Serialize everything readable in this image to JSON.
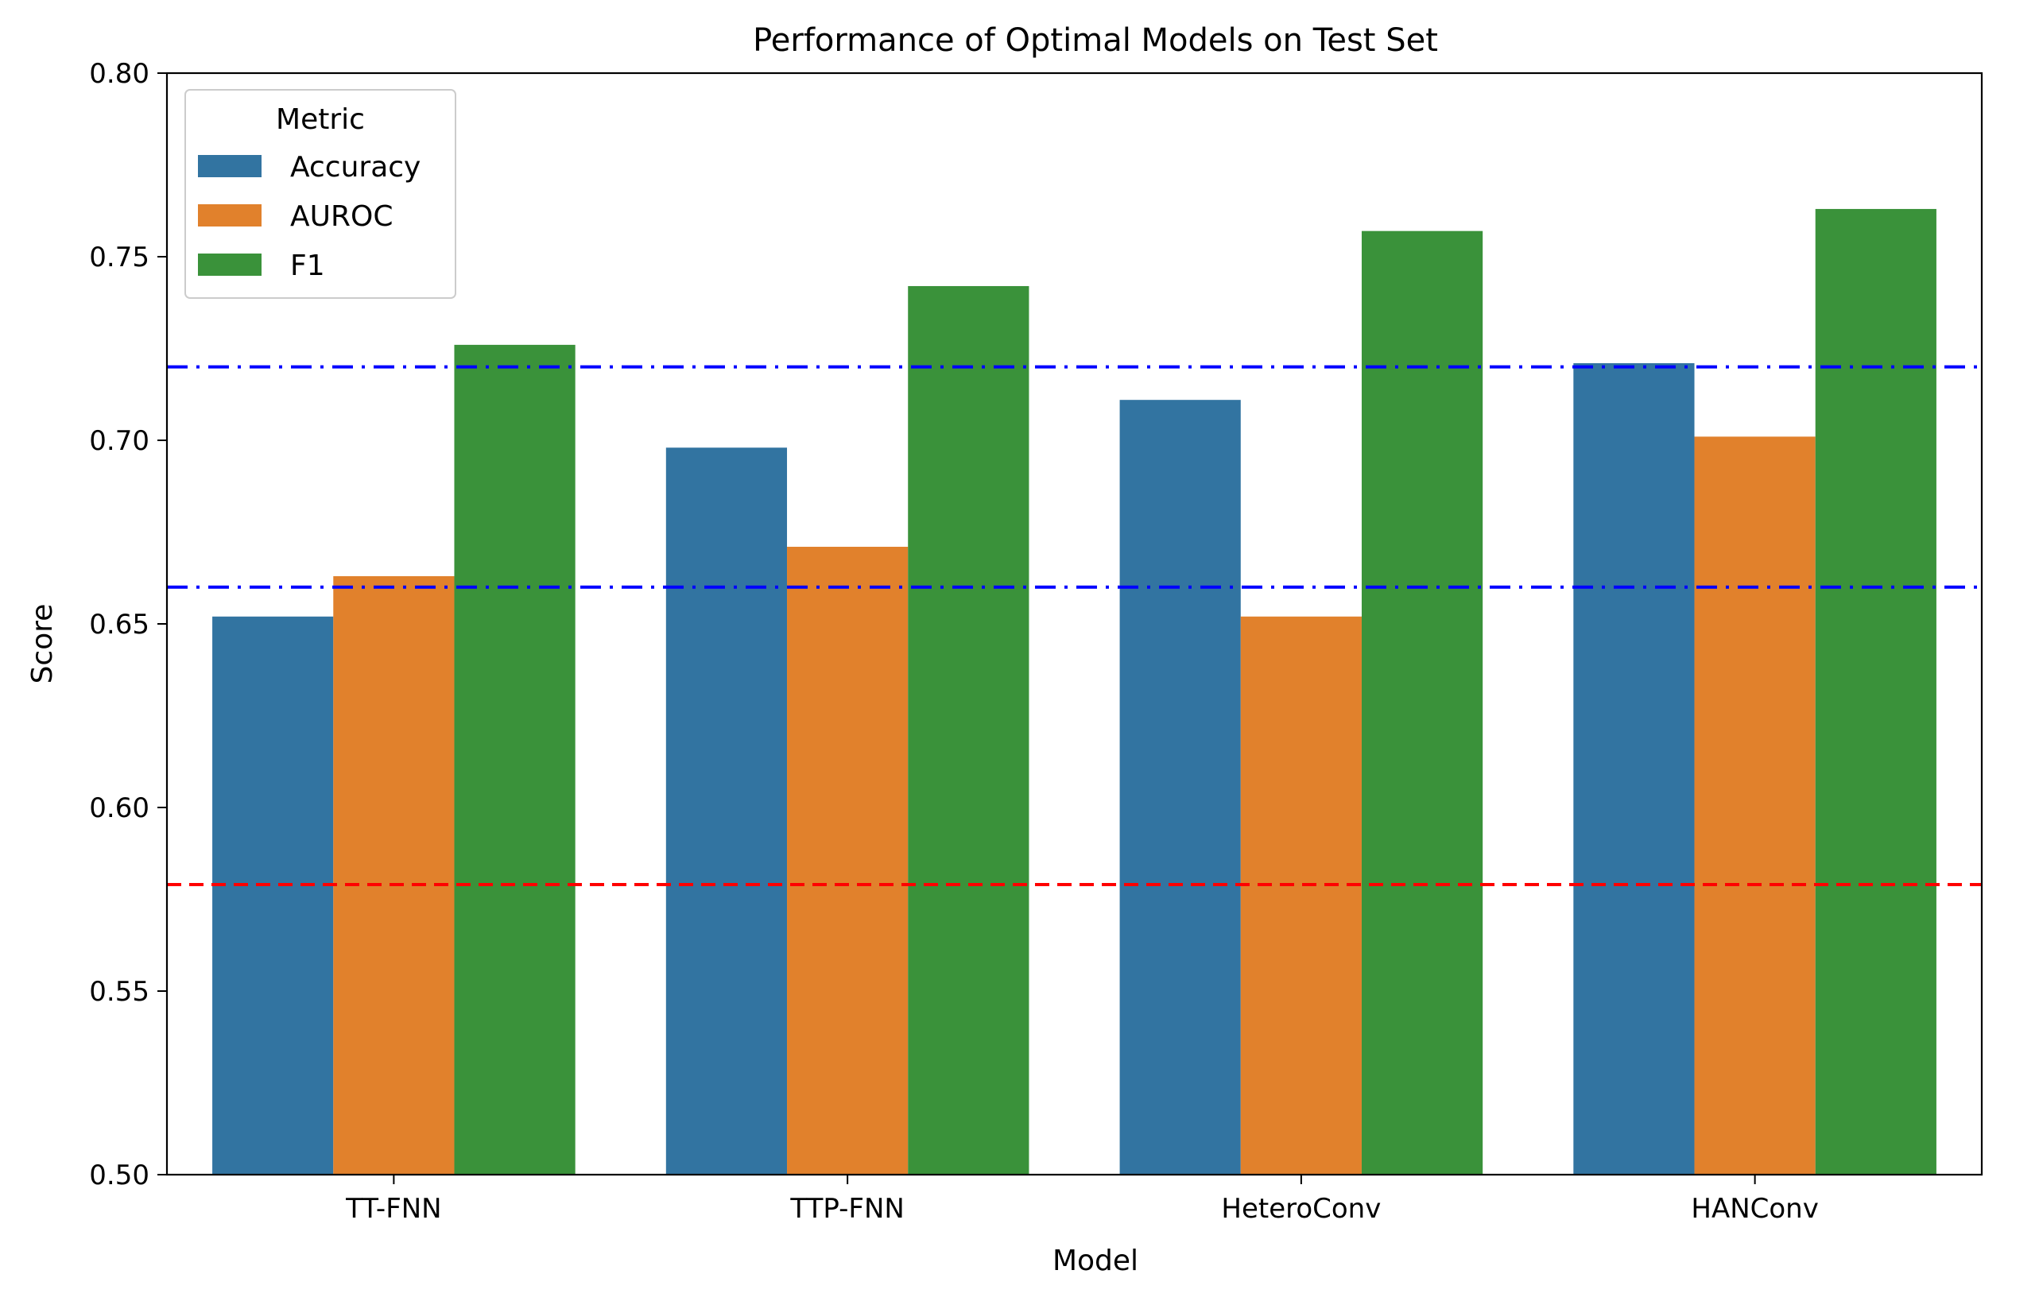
{
  "chart_data": {
    "type": "bar",
    "title": "Performance of Optimal Models on Test Set",
    "xlabel": "Model",
    "ylabel": "Score",
    "ylim": [
      0.5,
      0.8
    ],
    "yticks": [
      0.5,
      0.55,
      0.6,
      0.65,
      0.7,
      0.75,
      0.8
    ],
    "ytick_labels": [
      "0.50",
      "0.55",
      "0.60",
      "0.65",
      "0.70",
      "0.75",
      "0.80"
    ],
    "categories": [
      "TT-FNN",
      "TTP-FNN",
      "HeteroConv",
      "HANConv"
    ],
    "series": [
      {
        "name": "Accuracy",
        "color": "#3274a1",
        "values": [
          0.652,
          0.698,
          0.711,
          0.721
        ]
      },
      {
        "name": "AUROC",
        "color": "#e1812c",
        "values": [
          0.663,
          0.671,
          0.652,
          0.701
        ]
      },
      {
        "name": "F1",
        "color": "#3a923a",
        "values": [
          0.726,
          0.742,
          0.757,
          0.763
        ]
      }
    ],
    "legend": {
      "title": "Metric",
      "placement": "top-left"
    },
    "grid": false,
    "reference_lines": [
      {
        "y": 0.72,
        "color": "#0000ff",
        "style": "dashdot"
      },
      {
        "y": 0.66,
        "color": "#0000ff",
        "style": "dashdot"
      },
      {
        "y": 0.579,
        "color": "#ff0000",
        "style": "dashed"
      }
    ]
  }
}
